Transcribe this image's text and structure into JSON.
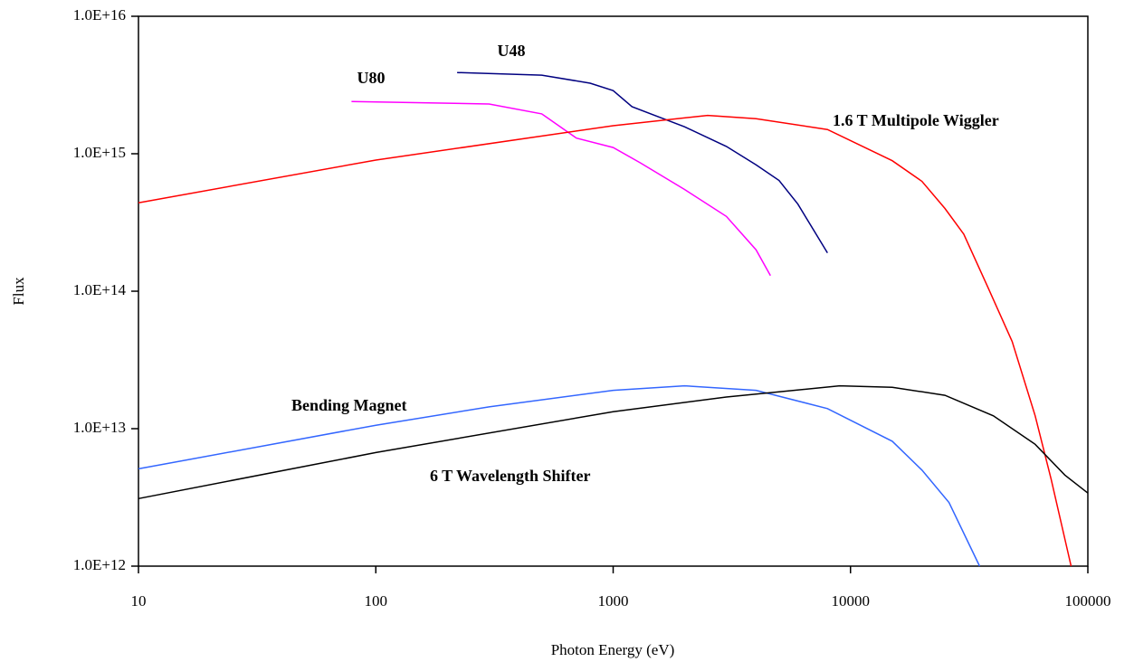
{
  "chart_data": {
    "type": "line",
    "x_label": "Photon Energy (eV)",
    "y_label": "Flux",
    "xlog": true,
    "ylog": true,
    "xlim": [
      10,
      100000
    ],
    "ylim": [
      1000000000000.0,
      1e+16
    ],
    "xticks": [
      10,
      100,
      1000,
      10000,
      100000
    ],
    "yticks": [
      {
        "value": 1000000000000.0,
        "label": "1.0E+12"
      },
      {
        "value": 10000000000000.0,
        "label": "1.0E+13"
      },
      {
        "value": 100000000000000.0,
        "label": "1.0E+14"
      },
      {
        "value": 1000000000000000.0,
        "label": "1.0E+15"
      },
      {
        "value": 1e+16,
        "label": "1.0E+16"
      }
    ],
    "series": [
      {
        "name": "U48",
        "color": "#000080",
        "x": [
          220,
          500,
          800,
          1000,
          1200,
          2000,
          3000,
          4000,
          5000,
          6000,
          8000
        ],
        "values": [
          3900000000000000.0,
          3730000000000000.0,
          3260000000000000.0,
          2880000000000000.0,
          2200000000000000.0,
          1570000000000000.0,
          1130000000000000.0,
          830000000000000.0,
          640000000000000.0,
          430000000000000.0,
          190000000000000.0
        ]
      },
      {
        "name": "U80",
        "color": "#ff00ff",
        "x": [
          79,
          300,
          500,
          700,
          1000,
          1300,
          2000,
          3000,
          4000,
          4600
        ],
        "values": [
          2400000000000000.0,
          2300000000000000.0,
          1950000000000000.0,
          1300000000000000.0,
          1110000000000000.0,
          860000000000000.0,
          550000000000000.0,
          350000000000000.0,
          200000000000000.0,
          130000000000000.0
        ]
      },
      {
        "name": "1.6 T Multipole Wiggler",
        "color": "#ff0000",
        "x": [
          10,
          100,
          1000,
          2500,
          4000,
          8000,
          15000,
          20000,
          25000,
          30000,
          38000,
          48000,
          60000,
          70000,
          85000
        ],
        "values": [
          440000000000000.0,
          900000000000000.0,
          1600000000000000.0,
          1900000000000000.0,
          1800000000000000.0,
          1500000000000000.0,
          890000000000000.0,
          630000000000000.0,
          400000000000000.0,
          260000000000000.0,
          106000000000000.0,
          43000000000000.0,
          12400000000000.0,
          4300000000000.0,
          1000000000000.0
        ]
      },
      {
        "name": "Bending Magnet",
        "color": "#3366ff",
        "x": [
          10,
          100,
          300,
          1000,
          2000,
          4000,
          8000,
          15000,
          20000,
          26000,
          35000
        ],
        "values": [
          5100000000000.0,
          10600000000000.0,
          14400000000000.0,
          19000000000000.0,
          20500000000000.0,
          19000000000000.0,
          14000000000000.0,
          8100000000000.0,
          5000000000000.0,
          2900000000000.0,
          1000000000000.0
        ]
      },
      {
        "name": "6 T Wavelength Shifter",
        "color": "#000000",
        "x": [
          10,
          100,
          1000,
          3000,
          9000,
          15000,
          25000,
          40000,
          60000,
          80000,
          100000
        ],
        "values": [
          3100000000000.0,
          6700000000000.0,
          13300000000000.0,
          17000000000000.0,
          20500000000000.0,
          20000000000000.0,
          17500000000000.0,
          12400000000000.0,
          7700000000000.0,
          4600000000000.0,
          3400000000000.0
        ]
      }
    ]
  }
}
